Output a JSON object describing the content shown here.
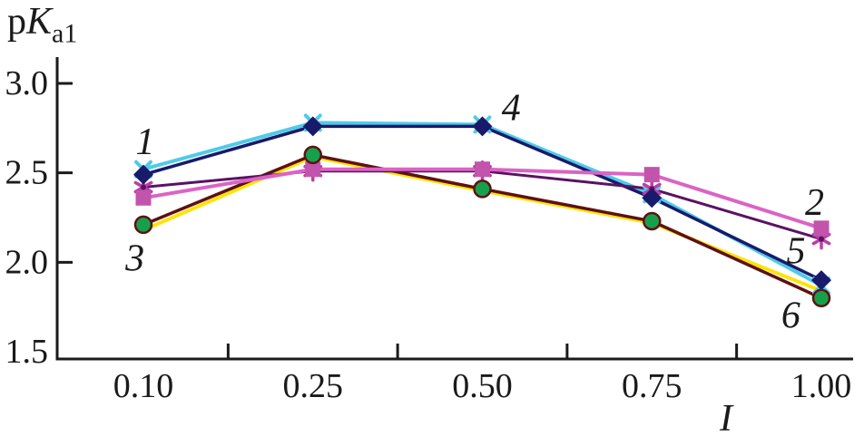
{
  "chart_data": {
    "type": "line",
    "title": "",
    "ylabel_parts": {
      "prefix": "p",
      "symbol": "K",
      "subscript": "a1"
    },
    "xlabel": "I",
    "x_values": [
      0.1,
      0.25,
      0.5,
      0.75,
      1.0
    ],
    "x_tick_labels": [
      "0.10",
      "0.25",
      "0.50",
      "0.75",
      "1.00"
    ],
    "y_ticks": [
      {
        "label": "3.0",
        "value": 3.0,
        "tick": true
      },
      {
        "label": "2.5",
        "value": 2.5,
        "tick": true
      },
      {
        "label": "2.0",
        "value": 2.0,
        "tick": true
      },
      {
        "label": "1.5",
        "value": 1.5,
        "tick": false
      }
    ],
    "ylim": [
      1.5,
      3.0
    ],
    "grid": false,
    "legend": "none",
    "series": [
      {
        "name": "1",
        "marker": "x",
        "line_color": "#4FCBE8",
        "marker_color": "#4FCBE8",
        "line_width": 4,
        "values": [
          2.52,
          2.78,
          2.77,
          2.38,
          1.87
        ]
      },
      {
        "name": "2",
        "marker": "square",
        "line_color": "#DB63C5",
        "marker_color": "#C254AC",
        "line_width": 4,
        "values": [
          2.36,
          2.52,
          2.52,
          2.49,
          2.19
        ]
      },
      {
        "name": "3",
        "marker": "circle",
        "line_color": "#5E1112",
        "marker_color": "#17A04B",
        "marker_stroke": "#5E1112",
        "line_width": 3.5,
        "values": [
          2.21,
          2.6,
          2.41,
          2.23,
          1.8
        ]
      },
      {
        "name": "4",
        "marker": "diamond",
        "line_color": "#181A6B",
        "marker_color": "#181A6B",
        "line_width": 3.5,
        "values": [
          2.49,
          2.76,
          2.76,
          2.36,
          1.9
        ]
      },
      {
        "name": "5",
        "marker": "asterisk",
        "line_color": "#5B1164",
        "marker_color": "#BC3FA4",
        "line_width": 3,
        "values": [
          2.42,
          2.51,
          2.51,
          2.41,
          2.13
        ]
      },
      {
        "name": "6",
        "marker": "none",
        "line_color": "#FFE308",
        "marker_color": "#FFE308",
        "line_width": 4,
        "values": [
          2.18,
          2.59,
          2.4,
          2.22,
          1.84
        ]
      }
    ],
    "annotations": [
      {
        "text": "1",
        "xi": 0.01,
        "y": 2.67
      },
      {
        "text": "2",
        "xi": 3.96,
        "y": 2.33
      },
      {
        "text": "3",
        "xi": -0.05,
        "y": 2.02
      },
      {
        "text": "4",
        "xi": 2.17,
        "y": 2.86
      },
      {
        "text": "5",
        "xi": 3.85,
        "y": 2.06
      },
      {
        "text": "6",
        "xi": 3.82,
        "y": 1.7
      }
    ]
  }
}
